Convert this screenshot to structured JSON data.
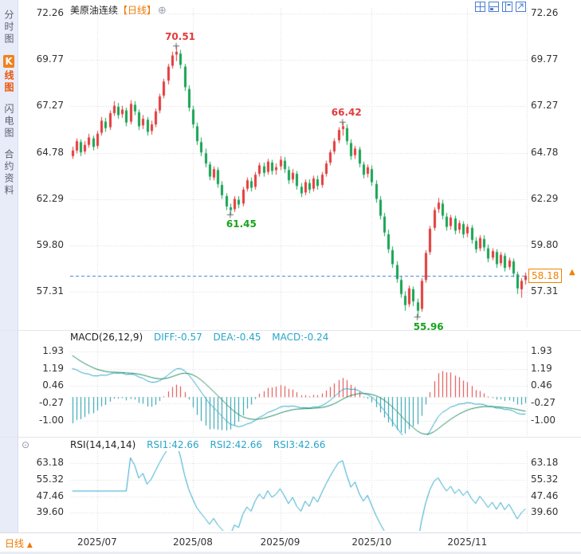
{
  "sidebar": {
    "items": [
      {
        "label": "分时图",
        "selected": false
      },
      {
        "label": "K线图",
        "first": "K",
        "rest": "线图",
        "selected": true
      },
      {
        "label": "闪电图",
        "selected": false
      },
      {
        "label": "合约资料",
        "selected": false
      }
    ]
  },
  "header": {
    "title": "美原油连续",
    "period": "【日线】",
    "add_icon_glyph": "⊕"
  },
  "price_panel": {
    "current_price_label": "58.18",
    "marker_glyph": "▲"
  },
  "macd_panel": {
    "title": "MACD(26,12,9)",
    "diff": "DIFF:-0.57",
    "dea": "DEA:-0.45",
    "macd": "MACD:-0.24"
  },
  "rsi_panel": {
    "title": "RSI(14,14,14)",
    "rsi1": "RSI1:42.66",
    "rsi2": "RSI2:42.66",
    "rsi3": "RSI3:42.66",
    "settings_glyph": "⊙"
  },
  "bottom_bar": {
    "period": "日线",
    "arrow": "▲"
  },
  "colors": {
    "up": "#e23b3b",
    "down": "#17a253",
    "accent": "#f08200",
    "price_line": "#3a7bd5",
    "grid": "#d7d7d7",
    "cross": "#666666",
    "diff_line": "#29a6c9",
    "dea_line": "#1d8a5f",
    "hist_pos": "#e23b3b",
    "hist_neg": "#1899a8",
    "rsi_line": "#29a6c9"
  },
  "chart_data": {
    "type": "candlestick",
    "title": "美原油连续【日线】",
    "price_axis_ticks": [
      72.26,
      69.77,
      67.27,
      64.78,
      62.29,
      59.8,
      57.31
    ],
    "price_range": {
      "max": 72.55,
      "min": 55.35
    },
    "current_price": 58.18,
    "annotations": [
      {
        "index": 25,
        "price": 70.51,
        "label": "70.51",
        "type": "high"
      },
      {
        "index": 38,
        "price": 61.45,
        "label": "61.45",
        "type": "low"
      },
      {
        "index": 65,
        "price": 66.42,
        "label": "66.42",
        "type": "high"
      },
      {
        "index": 83,
        "price": 55.96,
        "label": "55.96",
        "type": "low"
      }
    ],
    "months": [
      {
        "label": "2025/07",
        "index": 6
      },
      {
        "label": "2025/08",
        "index": 29
      },
      {
        "label": "2025/09",
        "index": 50
      },
      {
        "label": "2025/10",
        "index": 72
      },
      {
        "label": "2025/11",
        "index": 95
      }
    ],
    "candles": [
      [
        64.6,
        65.1,
        64.45,
        64.9
      ],
      [
        64.9,
        65.55,
        64.75,
        65.4
      ],
      [
        65.35,
        65.5,
        64.6,
        64.8
      ],
      [
        64.85,
        65.4,
        64.7,
        65.2
      ],
      [
        65.2,
        65.8,
        65.05,
        65.6
      ],
      [
        65.55,
        65.7,
        64.9,
        65.1
      ],
      [
        65.15,
        65.95,
        65.0,
        65.8
      ],
      [
        65.85,
        66.7,
        65.7,
        66.5
      ],
      [
        66.45,
        66.65,
        65.9,
        66.1
      ],
      [
        66.15,
        67.05,
        66.0,
        66.9
      ],
      [
        66.9,
        67.55,
        66.75,
        67.3
      ],
      [
        67.25,
        67.45,
        66.6,
        66.8
      ],
      [
        66.85,
        67.3,
        66.65,
        67.1
      ],
      [
        67.05,
        67.2,
        66.2,
        66.4
      ],
      [
        66.45,
        67.6,
        66.3,
        67.4
      ],
      [
        67.35,
        67.55,
        66.8,
        67.0
      ],
      [
        66.95,
        67.1,
        66.0,
        66.2
      ],
      [
        66.25,
        66.8,
        66.05,
        66.6
      ],
      [
        66.55,
        66.7,
        65.7,
        65.9
      ],
      [
        65.95,
        66.5,
        65.75,
        66.3
      ],
      [
        66.3,
        67.15,
        66.15,
        67.0
      ],
      [
        67.05,
        67.95,
        66.9,
        67.8
      ],
      [
        67.85,
        68.75,
        67.7,
        68.6
      ],
      [
        68.65,
        69.55,
        68.45,
        69.4
      ],
      [
        69.45,
        70.2,
        69.3,
        70.0
      ],
      [
        70.05,
        70.51,
        69.7,
        70.2
      ],
      [
        70.1,
        70.3,
        69.3,
        69.5
      ],
      [
        69.4,
        69.55,
        68.1,
        68.3
      ],
      [
        68.2,
        68.4,
        67.0,
        67.2
      ],
      [
        67.1,
        67.3,
        66.1,
        66.3
      ],
      [
        66.2,
        66.4,
        65.2,
        65.4
      ],
      [
        65.35,
        65.6,
        64.6,
        64.8
      ],
      [
        64.75,
        65.0,
        64.0,
        64.2
      ],
      [
        64.15,
        64.3,
        63.3,
        63.5
      ],
      [
        63.45,
        64.05,
        63.3,
        63.9
      ],
      [
        63.85,
        64.0,
        62.9,
        63.1
      ],
      [
        63.05,
        63.25,
        62.3,
        62.5
      ],
      [
        62.45,
        62.6,
        61.7,
        61.9
      ],
      [
        61.85,
        62.05,
        61.45,
        61.7
      ],
      [
        61.75,
        62.45,
        61.6,
        62.3
      ],
      [
        62.25,
        62.45,
        61.8,
        62.0
      ],
      [
        62.05,
        62.95,
        61.9,
        62.8
      ],
      [
        62.85,
        63.45,
        62.7,
        63.3
      ],
      [
        63.25,
        63.45,
        62.7,
        62.9
      ],
      [
        62.95,
        63.75,
        62.8,
        63.6
      ],
      [
        63.65,
        64.25,
        63.5,
        64.1
      ],
      [
        64.05,
        64.25,
        63.5,
        63.7
      ],
      [
        63.75,
        64.45,
        63.6,
        64.3
      ],
      [
        64.25,
        64.4,
        63.6,
        63.8
      ],
      [
        63.85,
        64.2,
        63.6,
        64.0
      ],
      [
        64.05,
        64.6,
        63.85,
        64.4
      ],
      [
        64.35,
        64.55,
        63.7,
        63.9
      ],
      [
        63.85,
        64.05,
        63.1,
        63.3
      ],
      [
        63.35,
        63.9,
        63.15,
        63.7
      ],
      [
        63.65,
        63.8,
        62.8,
        63.0
      ],
      [
        62.95,
        63.15,
        62.4,
        62.6
      ],
      [
        62.65,
        63.35,
        62.5,
        63.2
      ],
      [
        63.15,
        63.35,
        62.6,
        62.8
      ],
      [
        62.85,
        63.55,
        62.7,
        63.4
      ],
      [
        63.35,
        63.55,
        62.8,
        63.0
      ],
      [
        63.05,
        63.75,
        62.9,
        63.6
      ],
      [
        63.65,
        64.35,
        63.5,
        64.2
      ],
      [
        64.25,
        64.95,
        64.1,
        64.8
      ],
      [
        64.85,
        65.55,
        64.7,
        65.4
      ],
      [
        65.45,
        66.15,
        65.3,
        66.0
      ],
      [
        66.05,
        66.42,
        65.7,
        66.2
      ],
      [
        66.1,
        66.3,
        65.2,
        65.4
      ],
      [
        65.3,
        65.5,
        64.4,
        64.6
      ],
      [
        64.65,
        65.15,
        64.45,
        65.0
      ],
      [
        64.95,
        65.1,
        64.0,
        64.2
      ],
      [
        64.15,
        64.3,
        63.4,
        63.6
      ],
      [
        63.65,
        64.15,
        63.45,
        64.0
      ],
      [
        63.9,
        64.1,
        63.0,
        63.2
      ],
      [
        63.1,
        63.3,
        62.1,
        62.3
      ],
      [
        62.25,
        62.45,
        61.2,
        61.4
      ],
      [
        61.35,
        61.55,
        60.3,
        60.5
      ],
      [
        60.4,
        60.65,
        59.4,
        59.6
      ],
      [
        59.55,
        59.75,
        58.6,
        58.8
      ],
      [
        58.75,
        58.95,
        57.8,
        58.0
      ],
      [
        57.95,
        58.15,
        57.0,
        57.2
      ],
      [
        57.1,
        57.35,
        56.3,
        56.6
      ],
      [
        56.65,
        57.65,
        56.5,
        57.5
      ],
      [
        57.45,
        57.6,
        56.55,
        56.8
      ],
      [
        56.75,
        56.95,
        55.96,
        56.3
      ],
      [
        56.4,
        58.05,
        56.25,
        57.9
      ],
      [
        57.95,
        59.55,
        57.8,
        59.4
      ],
      [
        59.45,
        60.85,
        59.3,
        60.7
      ],
      [
        60.75,
        61.85,
        60.6,
        61.7
      ],
      [
        61.75,
        62.35,
        61.55,
        62.1
      ],
      [
        62.05,
        62.25,
        61.2,
        61.4
      ],
      [
        61.35,
        61.55,
        60.6,
        60.8
      ],
      [
        60.85,
        61.45,
        60.65,
        61.3
      ],
      [
        61.25,
        61.4,
        60.4,
        60.6
      ],
      [
        60.65,
        61.15,
        60.45,
        61.0
      ],
      [
        60.95,
        61.1,
        60.2,
        60.4
      ],
      [
        60.45,
        60.95,
        60.25,
        60.8
      ],
      [
        60.75,
        60.9,
        59.9,
        60.1
      ],
      [
        60.05,
        60.25,
        59.4,
        59.6
      ],
      [
        59.65,
        60.35,
        59.5,
        60.2
      ],
      [
        60.15,
        60.35,
        59.5,
        59.7
      ],
      [
        59.65,
        59.85,
        58.9,
        59.1
      ],
      [
        59.15,
        59.65,
        59.0,
        59.5
      ],
      [
        59.45,
        59.6,
        58.6,
        58.8
      ],
      [
        58.85,
        59.45,
        58.7,
        59.3
      ],
      [
        59.25,
        59.4,
        58.4,
        58.6
      ],
      [
        58.65,
        59.15,
        58.5,
        59.0
      ],
      [
        58.95,
        59.1,
        58.1,
        58.3
      ],
      [
        58.25,
        58.4,
        57.2,
        57.5
      ],
      [
        57.45,
        58.05,
        57.0,
        57.9
      ],
      [
        57.95,
        58.35,
        57.7,
        58.18
      ]
    ],
    "macd": {
      "title": "MACD(26,12,9)",
      "diff": -0.57,
      "dea": -0.45,
      "macd": -0.24,
      "ticks": [
        1.93,
        1.19,
        0.46,
        -0.27,
        -1.0
      ],
      "range": {
        "max": 2.35,
        "min": -1.6
      }
    },
    "rsi": {
      "title": "RSI(14,14,14)",
      "rsi1": 42.66,
      "rsi2": 42.66,
      "rsi3": 42.66,
      "ticks": [
        63.18,
        55.32,
        47.46,
        39.6
      ],
      "range": {
        "max": 69,
        "min": 31
      }
    }
  }
}
